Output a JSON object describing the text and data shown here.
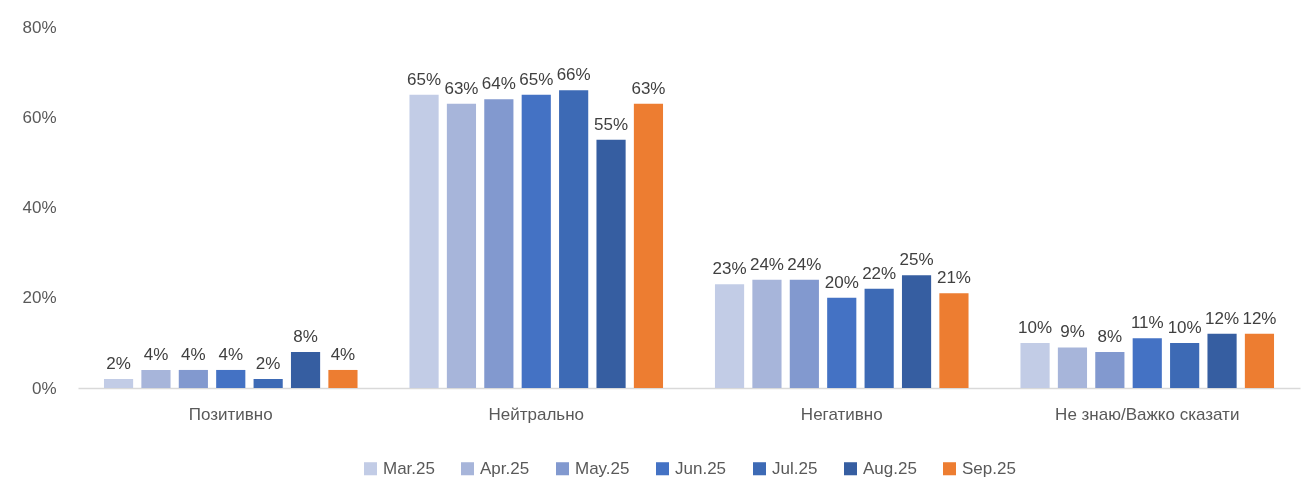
{
  "chart_data": {
    "type": "bar",
    "categories": [
      "Позитивно",
      "Нейтрально",
      "Негативно",
      "Не знаю/Важко сказати"
    ],
    "series": [
      {
        "name": "Mar.25",
        "color": "#c2cce6",
        "values": [
          2,
          65,
          23,
          10
        ],
        "value_labels": [
          "2%",
          "65%",
          "23%",
          "10%"
        ]
      },
      {
        "name": "Apr.25",
        "color": "#a7b5da",
        "values": [
          4,
          63,
          24,
          9
        ],
        "value_labels": [
          "4%",
          "63%",
          "24%",
          "9%"
        ]
      },
      {
        "name": "May.25",
        "color": "#8299cf",
        "values": [
          4,
          64,
          24,
          8
        ],
        "value_labels": [
          "4%",
          "64%",
          "24%",
          "8%"
        ]
      },
      {
        "name": "Jun.25",
        "color": "#4472c4",
        "values": [
          4,
          65,
          20,
          11
        ],
        "value_labels": [
          "4%",
          "65%",
          "20%",
          "11%"
        ]
      },
      {
        "name": "Jul.25",
        "color": "#3d6ab5",
        "values": [
          2,
          66,
          22,
          10
        ],
        "value_labels": [
          "2%",
          "66%",
          "22%",
          "10%"
        ]
      },
      {
        "name": "Aug.25",
        "color": "#365ea1",
        "values": [
          8,
          55,
          25,
          12
        ],
        "value_labels": [
          "8%",
          "55%",
          "25%",
          "12%"
        ]
      },
      {
        "name": "Sep.25",
        "color": "#ed7d31",
        "values": [
          4,
          63,
          21,
          12
        ],
        "value_labels": [
          "4%",
          "63%",
          "21%",
          "12%"
        ]
      }
    ],
    "ylim": [
      0,
      80
    ],
    "yticks": [
      {
        "value": 0,
        "label": "0%"
      },
      {
        "value": 20,
        "label": "20%"
      },
      {
        "value": 40,
        "label": "40%"
      },
      {
        "value": 60,
        "label": "60%"
      },
      {
        "value": 80,
        "label": "80%"
      }
    ],
    "legend": "bottom"
  }
}
